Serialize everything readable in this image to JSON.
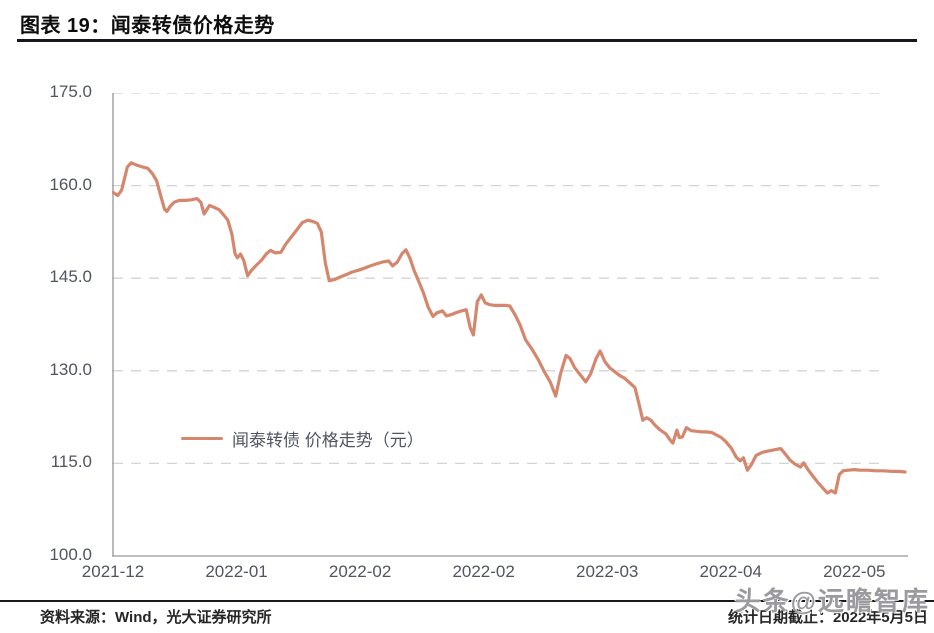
{
  "header": {
    "title": "图表 19：闻泰转债价格走势"
  },
  "legend": {
    "label": "闻泰转债 价格走势（元）"
  },
  "footer": {
    "source": "资料来源：Wind，光大证券研究所",
    "date_note": "统计日期截止：2022年5月5日",
    "watermark": "头条@远瞻智库"
  },
  "colors": {
    "line": "#d5876e",
    "axis": "#a8a8a8",
    "grid": "#d4d4d4",
    "tick_label": "#515560",
    "rule": "#17171e",
    "footer_text": "#262626",
    "watermark": "#7d7d84"
  },
  "chart_data": {
    "type": "line",
    "title": "闻泰转债价格走势",
    "xlabel": "",
    "ylabel": "",
    "ylim": [
      100,
      175
    ],
    "grid": "horizontal-dashed",
    "legend_position": "inside-lower-left",
    "y_ticks": [
      {
        "value": 175,
        "label": "175.0"
      },
      {
        "value": 160,
        "label": "160.0"
      },
      {
        "value": 145,
        "label": "145.0"
      },
      {
        "value": 130,
        "label": "130.0"
      },
      {
        "value": 115,
        "label": "115.0"
      },
      {
        "value": 100,
        "label": "100.0"
      }
    ],
    "grid_values": [
      175,
      160,
      145,
      130,
      115
    ],
    "x_ticks": [
      {
        "pos": 0.0,
        "label": "2021-12"
      },
      {
        "pos": 0.156,
        "label": "2022-01"
      },
      {
        "pos": 0.312,
        "label": "2022-02"
      },
      {
        "pos": 0.468,
        "label": "2022-02"
      },
      {
        "pos": 0.624,
        "label": "2022-03"
      },
      {
        "pos": 0.78,
        "label": "2022-04"
      },
      {
        "pos": 0.936,
        "label": "2022-05"
      }
    ],
    "series": [
      {
        "name": "闻泰转债 价格走势（元）",
        "color": "#d5876e",
        "points": [
          [
            0.0,
            158.9
          ],
          [
            0.006,
            158.4
          ],
          [
            0.011,
            159.3
          ],
          [
            0.018,
            163.0
          ],
          [
            0.023,
            163.7
          ],
          [
            0.03,
            163.3
          ],
          [
            0.038,
            163.0
          ],
          [
            0.044,
            162.8
          ],
          [
            0.05,
            161.9
          ],
          [
            0.055,
            160.8
          ],
          [
            0.06,
            158.5
          ],
          [
            0.065,
            156.2
          ],
          [
            0.068,
            155.8
          ],
          [
            0.072,
            156.6
          ],
          [
            0.077,
            157.3
          ],
          [
            0.084,
            157.6
          ],
          [
            0.092,
            157.6
          ],
          [
            0.099,
            157.7
          ],
          [
            0.106,
            157.9
          ],
          [
            0.111,
            157.3
          ],
          [
            0.115,
            155.4
          ],
          [
            0.118,
            156.0
          ],
          [
            0.122,
            156.8
          ],
          [
            0.127,
            156.5
          ],
          [
            0.134,
            156.1
          ],
          [
            0.14,
            155.2
          ],
          [
            0.145,
            154.4
          ],
          [
            0.15,
            152.2
          ],
          [
            0.154,
            149.0
          ],
          [
            0.157,
            148.3
          ],
          [
            0.161,
            148.9
          ],
          [
            0.165,
            147.9
          ],
          [
            0.17,
            145.4
          ],
          [
            0.175,
            146.3
          ],
          [
            0.181,
            147.1
          ],
          [
            0.188,
            148.0
          ],
          [
            0.194,
            149.0
          ],
          [
            0.199,
            149.5
          ],
          [
            0.205,
            149.1
          ],
          [
            0.212,
            149.2
          ],
          [
            0.218,
            150.5
          ],
          [
            0.224,
            151.5
          ],
          [
            0.232,
            152.8
          ],
          [
            0.239,
            154.0
          ],
          [
            0.246,
            154.4
          ],
          [
            0.252,
            154.2
          ],
          [
            0.258,
            153.9
          ],
          [
            0.263,
            152.5
          ],
          [
            0.268,
            147.5
          ],
          [
            0.273,
            144.6
          ],
          [
            0.28,
            144.8
          ],
          [
            0.287,
            145.2
          ],
          [
            0.295,
            145.6
          ],
          [
            0.302,
            146.0
          ],
          [
            0.31,
            146.3
          ],
          [
            0.317,
            146.6
          ],
          [
            0.325,
            147.0
          ],
          [
            0.332,
            147.3
          ],
          [
            0.34,
            147.6
          ],
          [
            0.348,
            147.8
          ],
          [
            0.353,
            147.0
          ],
          [
            0.359,
            147.6
          ],
          [
            0.365,
            149.0
          ],
          [
            0.37,
            149.6
          ],
          [
            0.375,
            148.2
          ],
          [
            0.38,
            146.3
          ],
          [
            0.385,
            144.8
          ],
          [
            0.392,
            142.6
          ],
          [
            0.398,
            140.3
          ],
          [
            0.404,
            138.8
          ],
          [
            0.409,
            139.4
          ],
          [
            0.416,
            139.7
          ],
          [
            0.421,
            138.9
          ],
          [
            0.427,
            139.1
          ],
          [
            0.433,
            139.4
          ],
          [
            0.44,
            139.7
          ],
          [
            0.446,
            139.9
          ],
          [
            0.451,
            137.0
          ],
          [
            0.455,
            135.8
          ],
          [
            0.46,
            141.2
          ],
          [
            0.465,
            142.3
          ],
          [
            0.47,
            141.0
          ],
          [
            0.476,
            140.7
          ],
          [
            0.482,
            140.6
          ],
          [
            0.489,
            140.6
          ],
          [
            0.495,
            140.6
          ],
          [
            0.501,
            140.5
          ],
          [
            0.508,
            139.0
          ],
          [
            0.514,
            137.4
          ],
          [
            0.521,
            135.0
          ],
          [
            0.529,
            133.5
          ],
          [
            0.537,
            131.8
          ],
          [
            0.544,
            130.0
          ],
          [
            0.552,
            128.2
          ],
          [
            0.559,
            125.9
          ],
          [
            0.565,
            129.5
          ],
          [
            0.572,
            132.5
          ],
          [
            0.577,
            132.0
          ],
          [
            0.583,
            130.5
          ],
          [
            0.589,
            129.5
          ],
          [
            0.597,
            128.2
          ],
          [
            0.603,
            129.5
          ],
          [
            0.61,
            132.0
          ],
          [
            0.615,
            133.2
          ],
          [
            0.621,
            131.5
          ],
          [
            0.627,
            130.5
          ],
          [
            0.633,
            129.9
          ],
          [
            0.64,
            129.2
          ],
          [
            0.646,
            128.8
          ],
          [
            0.652,
            128.1
          ],
          [
            0.659,
            127.3
          ],
          [
            0.664,
            124.7
          ],
          [
            0.669,
            122.0
          ],
          [
            0.674,
            122.4
          ],
          [
            0.679,
            122.0
          ],
          [
            0.685,
            121.1
          ],
          [
            0.691,
            120.4
          ],
          [
            0.698,
            119.8
          ],
          [
            0.704,
            118.7
          ],
          [
            0.707,
            118.3
          ],
          [
            0.712,
            120.4
          ],
          [
            0.715,
            119.2
          ],
          [
            0.719,
            119.3
          ],
          [
            0.724,
            120.8
          ],
          [
            0.73,
            120.3
          ],
          [
            0.737,
            120.2
          ],
          [
            0.743,
            120.1
          ],
          [
            0.749,
            120.1
          ],
          [
            0.756,
            120.0
          ],
          [
            0.762,
            119.6
          ],
          [
            0.768,
            119.2
          ],
          [
            0.774,
            118.5
          ],
          [
            0.781,
            117.4
          ],
          [
            0.787,
            116.0
          ],
          [
            0.792,
            115.4
          ],
          [
            0.796,
            115.9
          ],
          [
            0.801,
            113.9
          ],
          [
            0.806,
            114.8
          ],
          [
            0.812,
            116.3
          ],
          [
            0.82,
            116.8
          ],
          [
            0.827,
            117.0
          ],
          [
            0.835,
            117.2
          ],
          [
            0.843,
            117.4
          ],
          [
            0.849,
            116.5
          ],
          [
            0.855,
            115.5
          ],
          [
            0.861,
            114.9
          ],
          [
            0.868,
            114.4
          ],
          [
            0.872,
            115.1
          ],
          [
            0.878,
            113.9
          ],
          [
            0.884,
            112.9
          ],
          [
            0.89,
            111.9
          ],
          [
            0.897,
            110.9
          ],
          [
            0.902,
            110.2
          ],
          [
            0.907,
            110.6
          ],
          [
            0.912,
            110.2
          ],
          [
            0.917,
            113.2
          ],
          [
            0.922,
            113.8
          ],
          [
            0.928,
            113.9
          ],
          [
            0.936,
            114.0
          ],
          [
            0.943,
            113.9
          ],
          [
            0.953,
            113.9
          ],
          [
            0.963,
            113.8
          ],
          [
            0.973,
            113.8
          ],
          [
            0.984,
            113.7
          ],
          [
            0.992,
            113.7
          ],
          [
            1.0,
            113.6
          ]
        ]
      }
    ]
  }
}
